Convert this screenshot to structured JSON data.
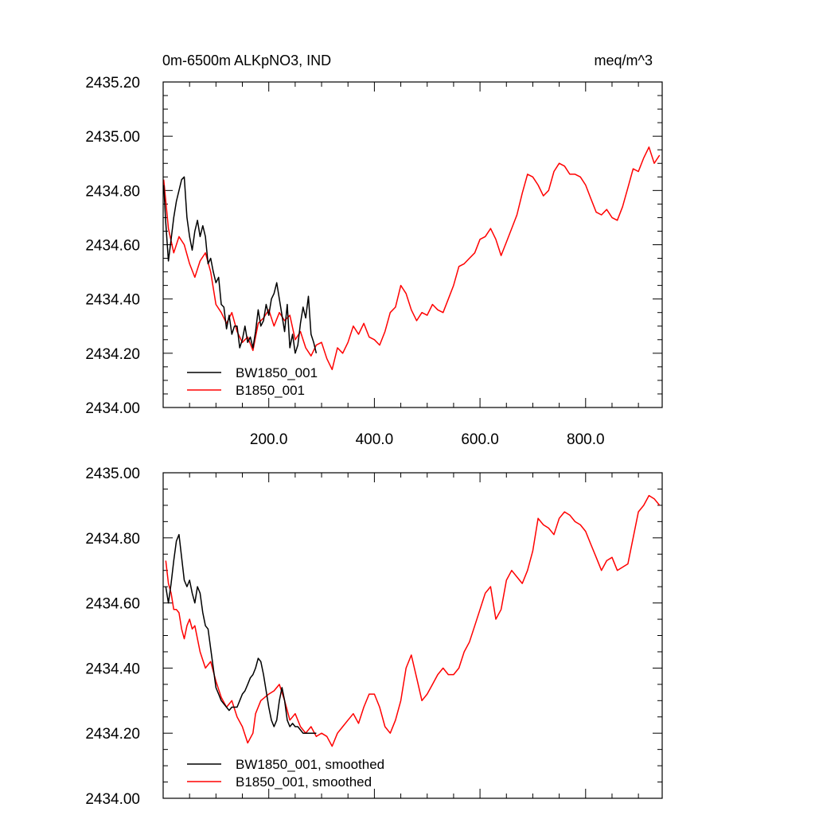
{
  "chart_data": [
    {
      "type": "line",
      "title": "0m-6500m ALKpNO3, IND",
      "units": "meq/m^3",
      "xlim": [
        0,
        945
      ],
      "ylim": [
        2434.0,
        2435.2
      ],
      "xticks": [
        200,
        400,
        600,
        800
      ],
      "xtick_labels": [
        "200.0",
        "400.0",
        "600.0",
        "800.0"
      ],
      "yticks": [
        2434.0,
        2434.2,
        2434.4,
        2434.6,
        2434.8,
        2435.0,
        2435.2
      ],
      "ytick_labels": [
        "2434.00",
        "2434.20",
        "2434.40",
        "2434.60",
        "2434.80",
        "2435.00",
        "2435.20"
      ],
      "legend_position": "bottom-left",
      "series": [
        {
          "name": "BW1850_001",
          "color": "#000000",
          "x": [
            1,
            5,
            10,
            15,
            20,
            25,
            30,
            35,
            40,
            45,
            50,
            55,
            60,
            65,
            70,
            75,
            80,
            85,
            90,
            95,
            100,
            105,
            110,
            115,
            120,
            125,
            130,
            135,
            140,
            145,
            150,
            155,
            160,
            165,
            170,
            175,
            180,
            185,
            190,
            195,
            200,
            205,
            210,
            215,
            220,
            225,
            230,
            235,
            240,
            245,
            250,
            255,
            260,
            265,
            270,
            275,
            280,
            285,
            290
          ],
          "y": [
            2434.82,
            2434.68,
            2434.54,
            2434.62,
            2434.7,
            2434.76,
            2434.8,
            2434.84,
            2434.85,
            2434.7,
            2434.63,
            2434.58,
            2434.65,
            2434.69,
            2434.63,
            2434.67,
            2434.63,
            2434.53,
            2434.55,
            2434.5,
            2434.46,
            2434.48,
            2434.38,
            2434.37,
            2434.29,
            2434.34,
            2434.27,
            2434.3,
            2434.3,
            2434.22,
            2434.25,
            2434.3,
            2434.24,
            2434.26,
            2434.22,
            2434.28,
            2434.36,
            2434.3,
            2434.32,
            2434.38,
            2434.34,
            2434.4,
            2434.42,
            2434.46,
            2434.4,
            2434.34,
            2434.28,
            2434.38,
            2434.22,
            2434.27,
            2434.2,
            2434.23,
            2434.31,
            2434.37,
            2434.33,
            2434.41,
            2434.27,
            2434.24,
            2434.2
          ]
        },
        {
          "name": "B1850_001",
          "color": "#ff0000",
          "x": [
            1,
            10,
            20,
            30,
            40,
            50,
            60,
            70,
            80,
            90,
            100,
            110,
            120,
            130,
            140,
            150,
            160,
            170,
            180,
            190,
            200,
            210,
            220,
            230,
            240,
            250,
            260,
            270,
            280,
            290,
            300,
            310,
            320,
            330,
            340,
            350,
            360,
            370,
            380,
            390,
            400,
            410,
            420,
            430,
            440,
            450,
            460,
            470,
            480,
            490,
            500,
            510,
            520,
            530,
            540,
            550,
            560,
            570,
            580,
            590,
            600,
            610,
            620,
            630,
            640,
            650,
            660,
            670,
            680,
            690,
            700,
            710,
            720,
            730,
            740,
            750,
            760,
            770,
            780,
            790,
            800,
            810,
            820,
            830,
            840,
            850,
            860,
            870,
            880,
            890,
            900,
            910,
            920,
            930,
            940
          ],
          "y": [
            2434.84,
            2434.66,
            2434.57,
            2434.63,
            2434.6,
            2434.53,
            2434.48,
            2434.54,
            2434.57,
            2434.5,
            2434.38,
            2434.35,
            2434.31,
            2434.35,
            2434.28,
            2434.24,
            2434.26,
            2434.21,
            2434.31,
            2434.33,
            2434.36,
            2434.3,
            2434.35,
            2434.32,
            2434.34,
            2434.25,
            2434.28,
            2434.22,
            2434.19,
            2434.23,
            2434.24,
            2434.18,
            2434.14,
            2434.22,
            2434.2,
            2434.24,
            2434.3,
            2434.27,
            2434.31,
            2434.26,
            2434.25,
            2434.23,
            2434.28,
            2434.35,
            2434.37,
            2434.45,
            2434.42,
            2434.36,
            2434.32,
            2434.35,
            2434.34,
            2434.38,
            2434.36,
            2434.35,
            2434.4,
            2434.45,
            2434.52,
            2434.53,
            2434.55,
            2434.57,
            2434.62,
            2434.63,
            2434.66,
            2434.62,
            2434.56,
            2434.61,
            2434.66,
            2434.71,
            2434.79,
            2434.86,
            2434.85,
            2434.82,
            2434.78,
            2434.8,
            2434.87,
            2434.9,
            2434.89,
            2434.86,
            2434.86,
            2434.85,
            2434.82,
            2434.77,
            2434.72,
            2434.71,
            2434.73,
            2434.7,
            2434.69,
            2434.74,
            2434.81,
            2434.88,
            2434.87,
            2434.92,
            2434.96,
            2434.9,
            2434.93
          ]
        }
      ]
    },
    {
      "type": "line",
      "xlim": [
        0,
        945
      ],
      "ylim": [
        2434.0,
        2435.0
      ],
      "xticks": [
        200,
        400,
        600,
        800
      ],
      "yticks": [
        2434.0,
        2434.2,
        2434.4,
        2434.6,
        2434.8,
        2435.0
      ],
      "ytick_labels": [
        "2434.00",
        "2434.20",
        "2434.40",
        "2434.60",
        "2434.80",
        "2435.00"
      ],
      "legend_position": "bottom-left",
      "series": [
        {
          "name": "BW1850_001, smoothed",
          "color": "#000000",
          "x": [
            5,
            10,
            15,
            20,
            25,
            30,
            35,
            40,
            45,
            50,
            55,
            60,
            65,
            70,
            75,
            80,
            85,
            90,
            95,
            100,
            105,
            110,
            115,
            120,
            125,
            130,
            135,
            140,
            145,
            150,
            155,
            160,
            165,
            170,
            175,
            180,
            185,
            190,
            195,
            200,
            205,
            210,
            215,
            220,
            225,
            230,
            235,
            240,
            245,
            250,
            255,
            260,
            265,
            270,
            275,
            280,
            285,
            290
          ],
          "y": [
            2434.65,
            2434.6,
            2434.66,
            2434.73,
            2434.79,
            2434.81,
            2434.74,
            2434.67,
            2434.65,
            2434.67,
            2434.63,
            2434.6,
            2434.65,
            2434.63,
            2434.57,
            2434.53,
            2434.52,
            2434.46,
            2434.4,
            2434.34,
            2434.32,
            2434.3,
            2434.29,
            2434.28,
            2434.27,
            2434.28,
            2434.28,
            2434.28,
            2434.3,
            2434.32,
            2434.33,
            2434.35,
            2434.37,
            2434.38,
            2434.4,
            2434.43,
            2434.42,
            2434.38,
            2434.33,
            2434.28,
            2434.24,
            2434.22,
            2434.24,
            2434.3,
            2434.34,
            2434.3,
            2434.24,
            2434.22,
            2434.23,
            2434.22,
            2434.22,
            2434.21,
            2434.2,
            2434.2,
            2434.2,
            2434.2,
            2434.2,
            2434.2
          ]
        },
        {
          "name": "B1850_001, smoothed",
          "color": "#ff0000",
          "x": [
            5,
            10,
            15,
            20,
            25,
            30,
            35,
            40,
            45,
            50,
            55,
            60,
            70,
            80,
            90,
            100,
            110,
            120,
            130,
            140,
            150,
            160,
            170,
            175,
            185,
            200,
            210,
            220,
            230,
            240,
            250,
            260,
            270,
            280,
            290,
            300,
            310,
            320,
            330,
            340,
            350,
            360,
            370,
            380,
            390,
            400,
            410,
            420,
            430,
            440,
            450,
            460,
            470,
            480,
            490,
            500,
            510,
            520,
            530,
            540,
            550,
            560,
            570,
            580,
            590,
            600,
            610,
            620,
            630,
            640,
            650,
            660,
            670,
            680,
            690,
            700,
            710,
            720,
            730,
            740,
            750,
            760,
            770,
            780,
            790,
            800,
            810,
            820,
            830,
            840,
            850,
            860,
            870,
            880,
            890,
            900,
            910,
            920,
            930,
            940
          ],
          "y": [
            2434.73,
            2434.66,
            2434.63,
            2434.58,
            2434.58,
            2434.57,
            2434.52,
            2434.49,
            2434.53,
            2434.55,
            2434.52,
            2434.53,
            2434.45,
            2434.4,
            2434.42,
            2434.36,
            2434.31,
            2434.28,
            2434.3,
            2434.25,
            2434.22,
            2434.17,
            2434.2,
            2434.26,
            2434.3,
            2434.32,
            2434.33,
            2434.35,
            2434.3,
            2434.24,
            2434.26,
            2434.22,
            2434.2,
            2434.22,
            2434.19,
            2434.2,
            2434.19,
            2434.16,
            2434.2,
            2434.22,
            2434.24,
            2434.26,
            2434.23,
            2434.28,
            2434.32,
            2434.32,
            2434.28,
            2434.22,
            2434.2,
            2434.24,
            2434.3,
            2434.4,
            2434.44,
            2434.37,
            2434.3,
            2434.32,
            2434.35,
            2434.38,
            2434.4,
            2434.38,
            2434.38,
            2434.4,
            2434.45,
            2434.48,
            2434.53,
            2434.58,
            2434.63,
            2434.65,
            2434.55,
            2434.58,
            2434.67,
            2434.7,
            2434.68,
            2434.66,
            2434.7,
            2434.76,
            2434.86,
            2434.84,
            2434.83,
            2434.81,
            2434.86,
            2434.88,
            2434.87,
            2434.85,
            2434.84,
            2434.82,
            2434.78,
            2434.74,
            2434.7,
            2434.73,
            2434.74,
            2434.7,
            2434.71,
            2434.72,
            2434.8,
            2434.88,
            2434.9,
            2434.93,
            2434.92,
            2434.9
          ]
        }
      ]
    }
  ]
}
